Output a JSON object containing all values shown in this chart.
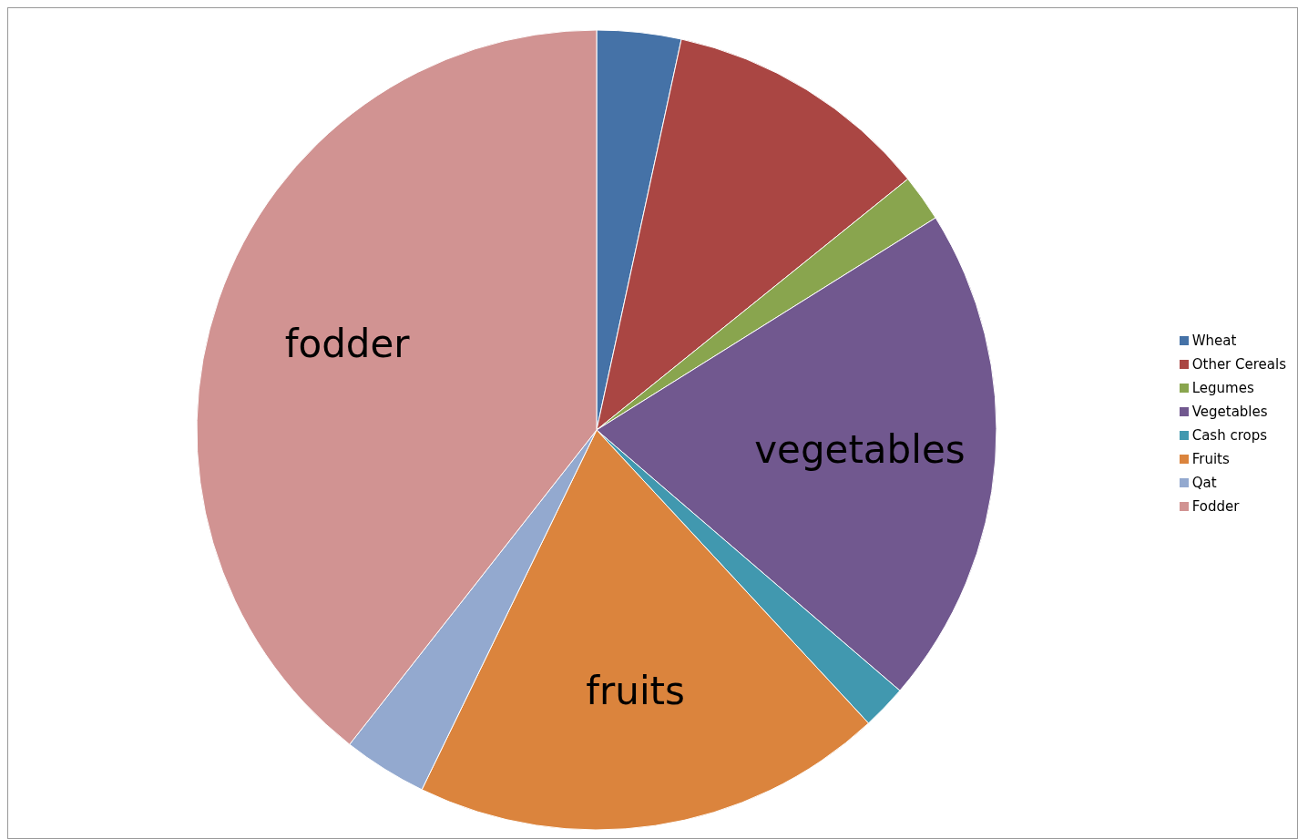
{
  "chart_data": {
    "type": "pie",
    "categories": [
      "Wheat",
      "Other Cereals",
      "Legumes",
      "Vegetables",
      "Cash crops",
      "Fruits",
      "Qat",
      "Fodder"
    ],
    "values": [
      3.4,
      10.8,
      1.9,
      20.2,
      1.8,
      19.1,
      3.4,
      39.4
    ],
    "colors": [
      "#4572a7",
      "#aa4643",
      "#89a54e",
      "#71588f",
      "#4198af",
      "#db843d",
      "#93a9cf",
      "#d19392"
    ],
    "value_labels": [
      null,
      null,
      null,
      "vegetables",
      null,
      "fruits",
      null,
      "fodder"
    ],
    "legend": "right"
  }
}
